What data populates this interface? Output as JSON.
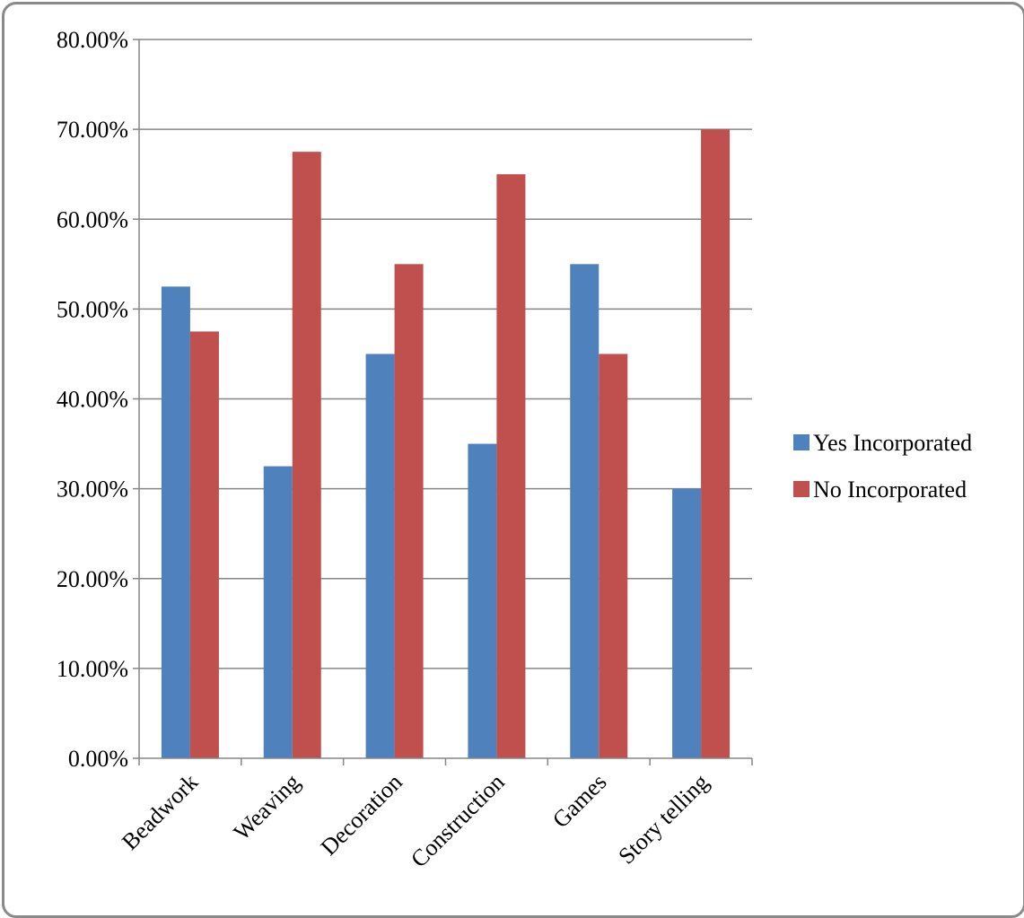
{
  "chart_data": {
    "type": "bar",
    "categories": [
      "Beadwork",
      "Weaving",
      "Decoration",
      "Construction",
      "Games",
      "Story telling"
    ],
    "series": [
      {
        "name": "Yes Incorporated",
        "values": [
          0.525,
          0.325,
          0.45,
          0.35,
          0.55,
          0.3
        ],
        "color": "#4F81BD"
      },
      {
        "name": "No Incorporated",
        "values": [
          0.475,
          0.675,
          0.55,
          0.65,
          0.45,
          0.7
        ],
        "color": "#C0504D"
      }
    ],
    "yticks": [
      "0.00%",
      "10.00%",
      "20.00%",
      "30.00%",
      "40.00%",
      "50.00%",
      "60.00%",
      "70.00%",
      "80.00%"
    ],
    "ylim": [
      0,
      0.8
    ],
    "grid": true,
    "legend_position": "right",
    "title": "",
    "xlabel": "",
    "ylabel": ""
  }
}
